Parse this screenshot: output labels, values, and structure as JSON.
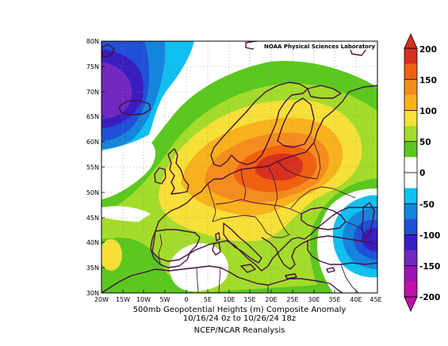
{
  "map": {
    "credit": "NOAA Physical Sciences Laboratory",
    "lat_labels": [
      "80N",
      "75N",
      "70N",
      "65N",
      "60N",
      "55N",
      "50N",
      "45N",
      "40N",
      "35N",
      "30N"
    ],
    "lon_labels": [
      "20W",
      "15W",
      "10W",
      "5W",
      "0",
      "5E",
      "10E",
      "15E",
      "20E",
      "25E",
      "30E",
      "35E",
      "40E",
      "45E"
    ],
    "extent": {
      "lon": [
        -20,
        45
      ],
      "lat": [
        30,
        80
      ]
    },
    "gridlines": true
  },
  "colorbar": {
    "ticks": [
      "200",
      "150",
      "100",
      "50",
      "0",
      "-50",
      "-100",
      "-150",
      "-200"
    ],
    "colors_top_to_bottom": [
      "#d7301f",
      "#f06010",
      "#f58c1e",
      "#f8b21e",
      "#f7e038",
      "#a3dc2a",
      "#5ac81e",
      "#ffffff",
      "#ffffff",
      "#10c0f0",
      "#1584dc",
      "#2050d8",
      "#3a1dc0",
      "#7028c0",
      "#9b12b4",
      "#c010a8"
    ]
  },
  "caption": {
    "line1": "500mb Geopotential Heights (m)    Composite Anomaly",
    "line2": "10/16/24 0z  to 10/26/24 18z",
    "line3": "NCEP/NCAR Reanalysis"
  },
  "colors": {
    "c200": "#d7301f",
    "c150": "#f06010",
    "c100": "#f58c1e",
    "c75": "#f8b21e",
    "c50": "#f7e038",
    "c25": "#a3dc2a",
    "c10": "#5ac81e",
    "neg25": "#10c0f0",
    "neg50": "#1584dc",
    "neg75": "#2050d8",
    "neg100": "#3a1dc0",
    "neg125": "#7028c0",
    "coast": "#4a1040"
  }
}
